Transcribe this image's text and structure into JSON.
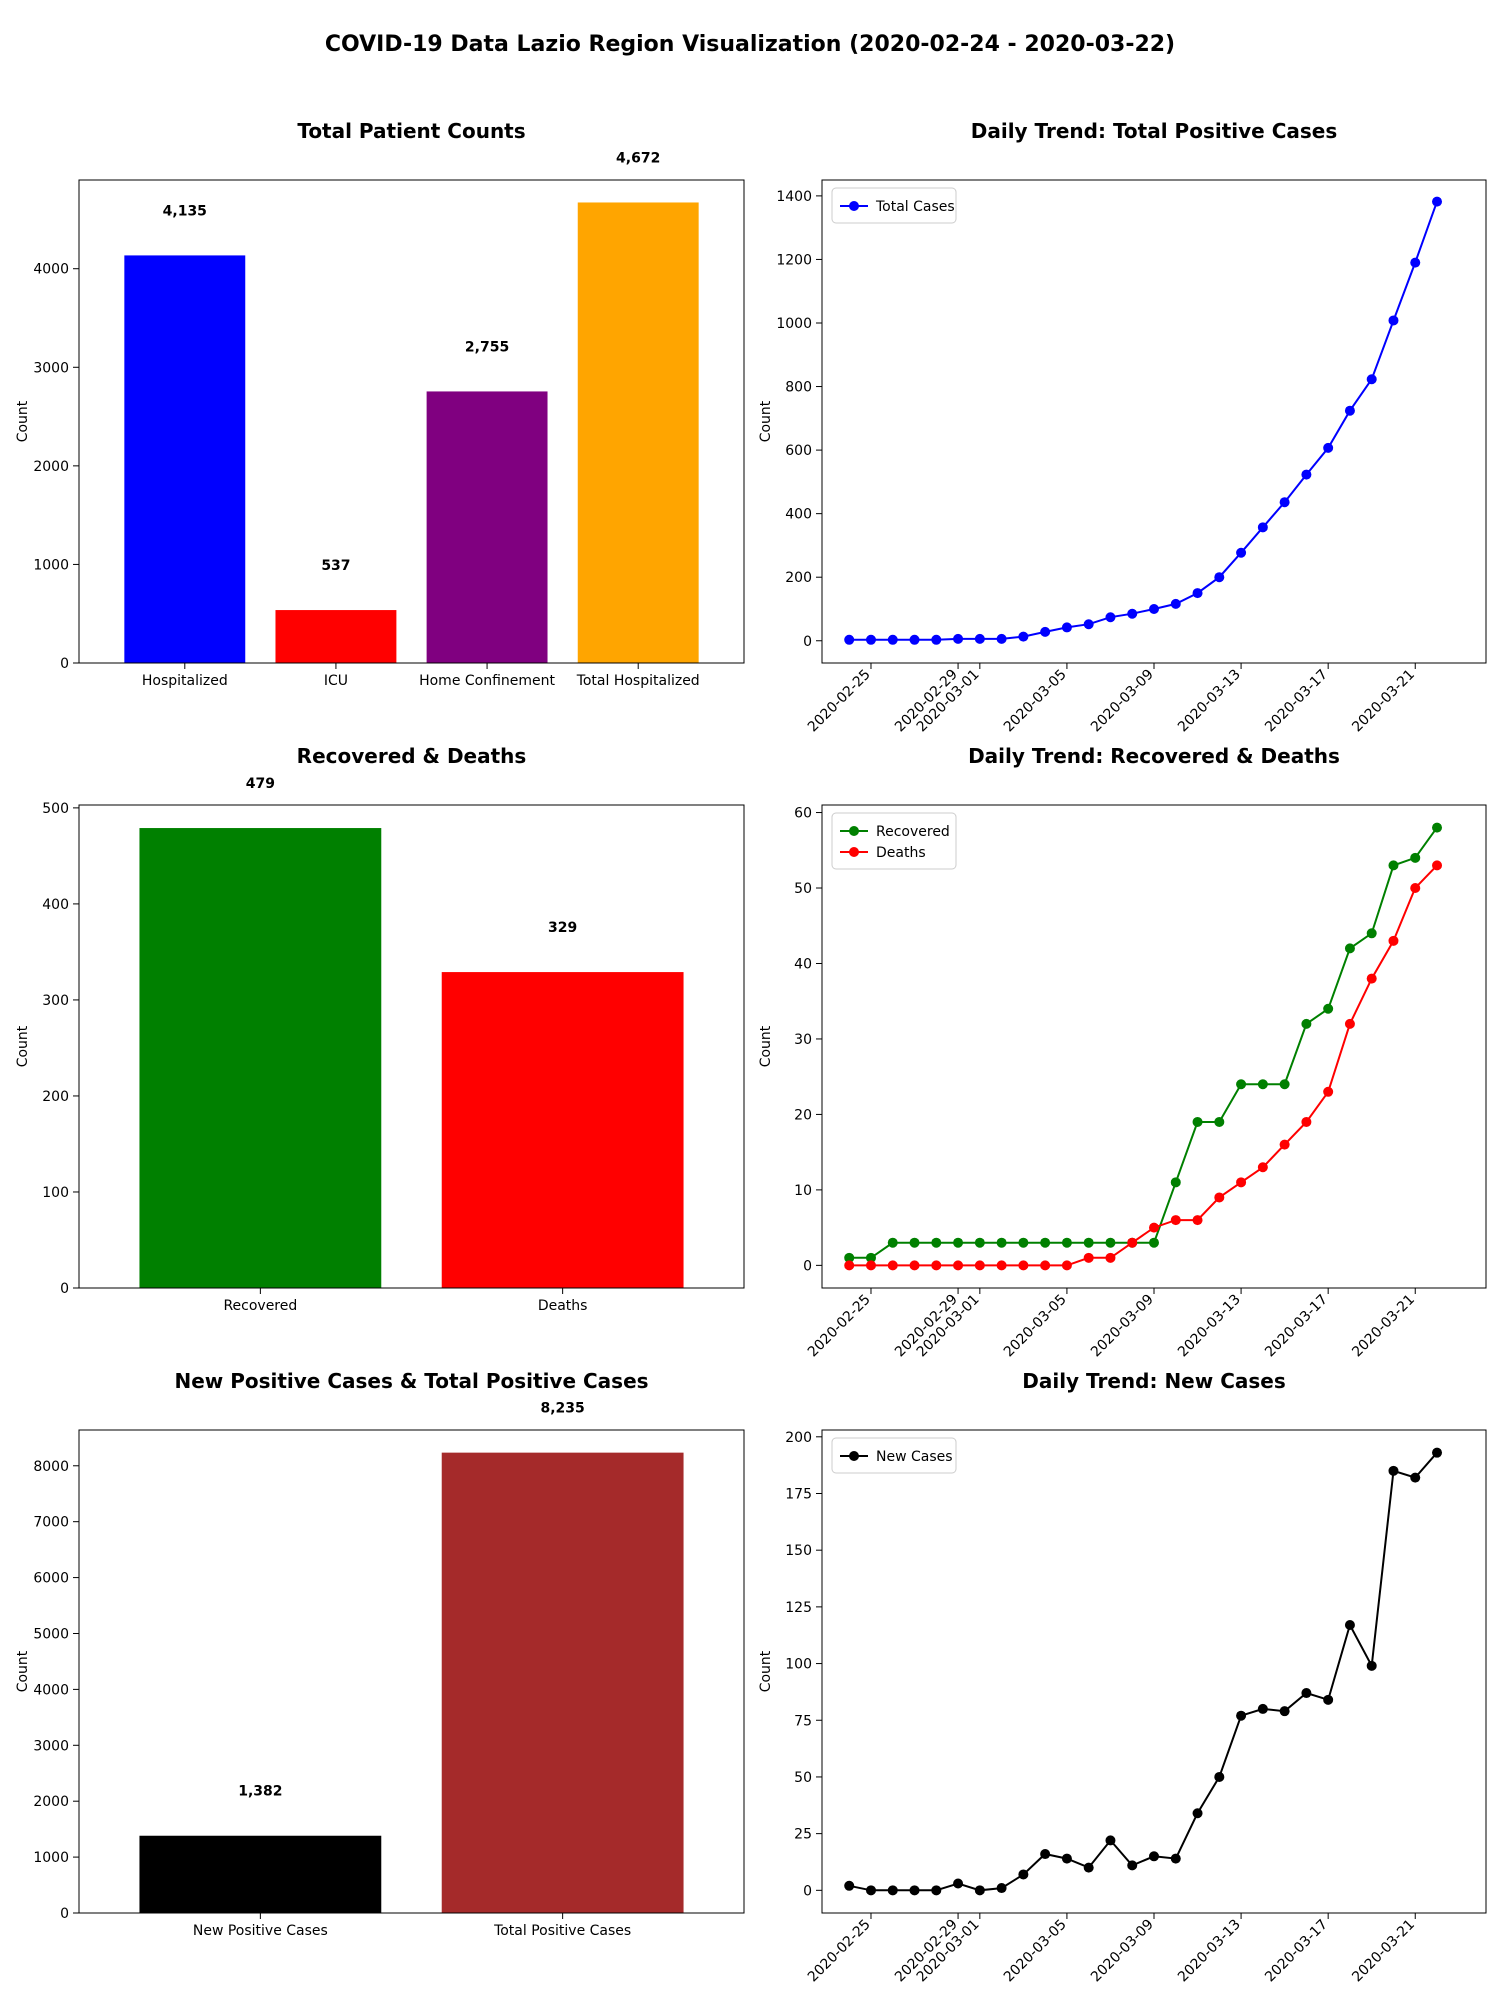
{
  "page": {
    "title": "COVID-19 Data Lazio Region Visualization (2020-02-24 - 2020-03-22)"
  },
  "dates": [
    "2020-02-24",
    "2020-02-25",
    "2020-02-26",
    "2020-02-27",
    "2020-02-28",
    "2020-02-29",
    "2020-03-01",
    "2020-03-02",
    "2020-03-03",
    "2020-03-04",
    "2020-03-05",
    "2020-03-06",
    "2020-03-07",
    "2020-03-08",
    "2020-03-09",
    "2020-03-10",
    "2020-03-11",
    "2020-03-12",
    "2020-03-13",
    "2020-03-14",
    "2020-03-15",
    "2020-03-16",
    "2020-03-17",
    "2020-03-18",
    "2020-03-19",
    "2020-03-20",
    "2020-03-21",
    "2020-03-22"
  ],
  "date_tick_labels": [
    "2020-02-25",
    "2020-02-29",
    "2020-03-01",
    "2020-03-05",
    "2020-03-09",
    "2020-03-13",
    "2020-03-17",
    "2020-03-21"
  ],
  "chart_data": [
    {
      "id": "total-patient-counts",
      "type": "bar",
      "title": "Total Patient Counts",
      "ylabel": "Count",
      "ylim": [
        0,
        4900
      ],
      "yticks": [
        0,
        1000,
        2000,
        3000,
        4000
      ],
      "categories": [
        "Hospitalized",
        "ICU",
        "Home Confinement",
        "Total Hospitalized"
      ],
      "values": [
        4135,
        537,
        2755,
        4672
      ],
      "value_labels": [
        "4,135",
        "537",
        "2,755",
        "4,672"
      ],
      "colors": [
        "#0000ff",
        "#ff0000",
        "#800080",
        "#ffa500"
      ]
    },
    {
      "id": "daily-total-positive",
      "type": "line",
      "title": "Daily Trend: Total Positive Cases",
      "ylabel": "Count",
      "ylim": [
        -70,
        1450
      ],
      "yticks": [
        0,
        200,
        400,
        600,
        800,
        1000,
        1200,
        1400
      ],
      "legend_position": "upper-left",
      "series": [
        {
          "name": "Total Cases",
          "color": "#0000ff",
          "values": [
            3,
            3,
            3,
            3,
            3,
            6,
            6,
            6,
            13,
            28,
            42,
            52,
            74,
            85,
            100,
            116,
            150,
            200,
            277,
            357,
            436,
            523,
            607,
            724,
            823,
            1008,
            1190,
            1382
          ]
        }
      ]
    },
    {
      "id": "recovered-deaths",
      "type": "bar",
      "title": "Recovered & Deaths",
      "ylabel": "Count",
      "ylim": [
        0,
        503
      ],
      "yticks": [
        0,
        100,
        200,
        300,
        400,
        500
      ],
      "categories": [
        "Recovered",
        "Deaths"
      ],
      "values": [
        479,
        329
      ],
      "value_labels": [
        "479",
        "329"
      ],
      "colors": [
        "#008000",
        "#ff0000"
      ]
    },
    {
      "id": "daily-recovered-deaths",
      "type": "line",
      "title": "Daily Trend: Recovered & Deaths",
      "ylabel": "Count",
      "ylim": [
        -3,
        61
      ],
      "yticks": [
        0,
        10,
        20,
        30,
        40,
        50,
        60
      ],
      "legend_position": "upper-left",
      "series": [
        {
          "name": "Recovered",
          "color": "#008000",
          "values": [
            1,
            1,
            3,
            3,
            3,
            3,
            3,
            3,
            3,
            3,
            3,
            3,
            3,
            3,
            3,
            11,
            19,
            19,
            24,
            24,
            24,
            32,
            34,
            42,
            44,
            53,
            54,
            58
          ]
        },
        {
          "name": "Deaths",
          "color": "#ff0000",
          "values": [
            0,
            0,
            0,
            0,
            0,
            0,
            0,
            0,
            0,
            0,
            0,
            1,
            1,
            3,
            5,
            6,
            6,
            9,
            11,
            13,
            16,
            19,
            23,
            32,
            38,
            43,
            50,
            53
          ]
        }
      ]
    },
    {
      "id": "new-vs-total-positive",
      "type": "bar",
      "title": "New Positive Cases & Total Positive Cases",
      "ylabel": "Count",
      "ylim": [
        0,
        8640
      ],
      "yticks": [
        0,
        1000,
        2000,
        3000,
        4000,
        5000,
        6000,
        7000,
        8000
      ],
      "categories": [
        "New Positive Cases",
        "Total Positive Cases"
      ],
      "values": [
        1382,
        8235
      ],
      "value_labels": [
        "1,382",
        "8,235"
      ],
      "colors": [
        "#000000",
        "#a52a2a"
      ]
    },
    {
      "id": "daily-new-cases",
      "type": "line",
      "title": "Daily Trend: New Cases",
      "ylabel": "Count",
      "ylim": [
        -10,
        203
      ],
      "yticks": [
        0,
        25,
        50,
        75,
        100,
        125,
        150,
        175,
        200
      ],
      "legend_position": "upper-left",
      "series": [
        {
          "name": "New Cases",
          "color": "#000000",
          "values": [
            2,
            0,
            0,
            0,
            0,
            3,
            0,
            1,
            7,
            16,
            14,
            10,
            22,
            11,
            15,
            14,
            34,
            50,
            77,
            80,
            79,
            87,
            84,
            117,
            99,
            185,
            182,
            193
          ]
        }
      ]
    }
  ]
}
